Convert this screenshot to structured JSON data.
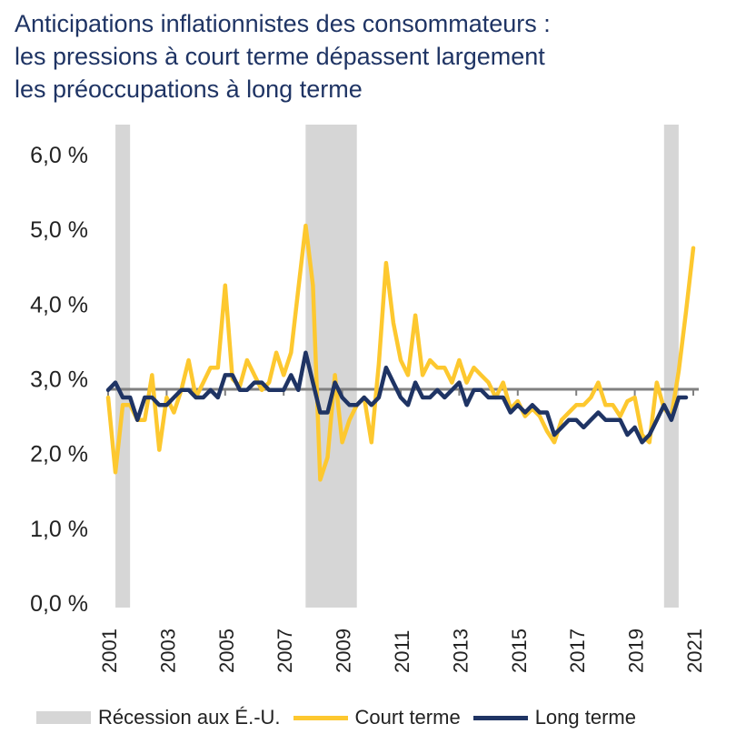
{
  "title_lines": [
    "Anticipations inflationnistes des consommateurs :",
    "les pressions à court terme dépassent largement",
    "les préoccupations à long terme"
  ],
  "chart_data": {
    "type": "line",
    "title": "Anticipations inflationnistes des consommateurs : les pressions à court terme dépassent largement les préoccupations à long terme",
    "xlabel": "",
    "ylabel": "",
    "xlim": [
      2001,
      2021
    ],
    "ylim": [
      0,
      6
    ],
    "x_ticks": [
      "2001",
      "2003",
      "2005",
      "2007",
      "2009",
      "2011",
      "2013",
      "2015",
      "2017",
      "2019",
      "2021"
    ],
    "y_ticks": [
      "0,0 %",
      "1,0 %",
      "2,0 %",
      "3,0 %",
      "4,0 %",
      "5,0 %",
      "6,0 %"
    ],
    "x_start": 2001,
    "x_step": 0.25,
    "reference_line": 2.86,
    "recessions": [
      [
        2001.25,
        2001.75
      ],
      [
        2007.75,
        2009.5
      ],
      [
        2020.0,
        2020.5
      ]
    ],
    "grid": false,
    "legend_position": "bottom",
    "series": [
      {
        "name": "Court terme",
        "color": "#fdc82f",
        "values": [
          2.75,
          1.75,
          2.65,
          2.65,
          2.45,
          2.45,
          3.05,
          2.05,
          2.75,
          2.55,
          2.85,
          3.25,
          2.75,
          2.95,
          3.15,
          3.15,
          4.25,
          3.0,
          2.9,
          3.25,
          3.05,
          2.85,
          2.95,
          3.35,
          3.05,
          3.35,
          4.2,
          5.05,
          4.25,
          1.65,
          1.95,
          3.05,
          2.15,
          2.45,
          2.65,
          2.75,
          2.15,
          3.2,
          4.55,
          3.75,
          3.25,
          3.05,
          3.85,
          3.05,
          3.25,
          3.15,
          3.15,
          2.95,
          3.25,
          2.95,
          3.15,
          3.05,
          2.95,
          2.75,
          2.95,
          2.6,
          2.7,
          2.5,
          2.6,
          2.5,
          2.3,
          2.15,
          2.45,
          2.55,
          2.65,
          2.65,
          2.75,
          2.95,
          2.65,
          2.65,
          2.5,
          2.7,
          2.75,
          2.25,
          2.15,
          2.95,
          2.6,
          2.5,
          3.1,
          3.9,
          4.75
        ]
      },
      {
        "name": "Long terme",
        "color": "#1f3464",
        "values": [
          2.85,
          2.95,
          2.75,
          2.75,
          2.45,
          2.75,
          2.75,
          2.65,
          2.65,
          2.75,
          2.85,
          2.85,
          2.75,
          2.75,
          2.85,
          2.75,
          3.05,
          3.05,
          2.85,
          2.85,
          2.95,
          2.95,
          2.85,
          2.85,
          2.85,
          3.05,
          2.85,
          3.35,
          2.95,
          2.55,
          2.55,
          2.95,
          2.75,
          2.65,
          2.65,
          2.75,
          2.65,
          2.75,
          3.15,
          2.95,
          2.75,
          2.65,
          2.95,
          2.75,
          2.75,
          2.85,
          2.75,
          2.85,
          2.95,
          2.65,
          2.85,
          2.85,
          2.75,
          2.75,
          2.75,
          2.55,
          2.65,
          2.55,
          2.65,
          2.55,
          2.55,
          2.25,
          2.35,
          2.45,
          2.45,
          2.35,
          2.45,
          2.55,
          2.45,
          2.45,
          2.45,
          2.25,
          2.35,
          2.15,
          2.25,
          2.45,
          2.65,
          2.45,
          2.75,
          2.75
        ]
      }
    ]
  },
  "legend": {
    "recession_label": "Récession aux É.-U.",
    "recession_color": "#d6d6d6",
    "short_label": "Court terme",
    "long_label": "Long terme"
  }
}
